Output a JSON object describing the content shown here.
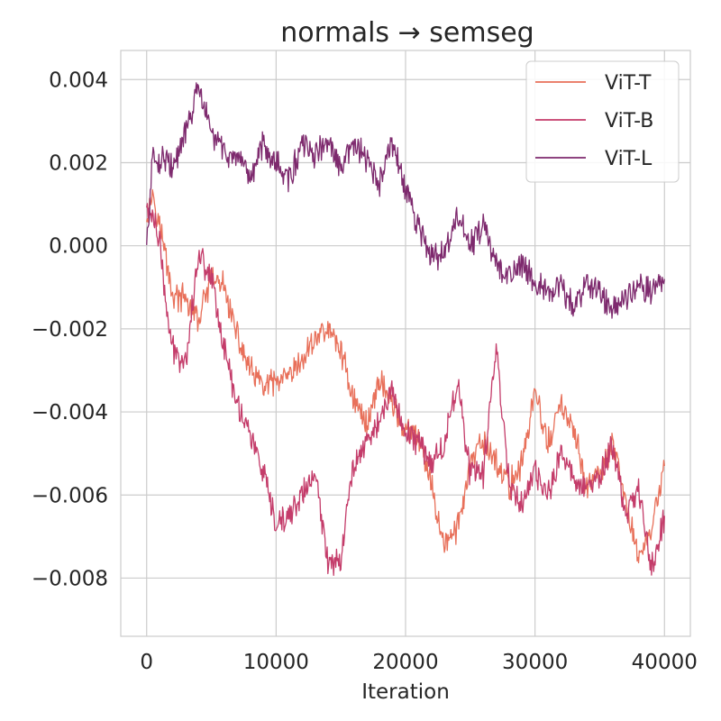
{
  "chart_data": {
    "type": "line",
    "title": "normals → semseg",
    "xlabel": "Iteration",
    "ylabel": "",
    "xlim": [
      -2000,
      42000
    ],
    "ylim": [
      -0.0094,
      0.0047
    ],
    "grid": true,
    "xticks": [
      0,
      10000,
      20000,
      30000,
      40000
    ],
    "xtick_labels": [
      "0",
      "10000",
      "20000",
      "30000",
      "40000"
    ],
    "yticks": [
      0.004,
      0.002,
      0.0,
      -0.002,
      -0.004,
      -0.006,
      -0.008
    ],
    "ytick_labels": [
      "0.004",
      "0.002",
      "0.000",
      "−0.002",
      "−0.004",
      "−0.006",
      "−0.008"
    ],
    "legend_position": "top-right",
    "series": [
      {
        "name": "ViT-T",
        "color": "#e8705a",
        "x": [
          0,
          500,
          1000,
          1500,
          2000,
          3000,
          4000,
          5000,
          6000,
          7000,
          8000,
          9000,
          10000,
          11000,
          12000,
          13000,
          14000,
          15000,
          16000,
          17000,
          18000,
          19000,
          20000,
          21000,
          22000,
          23000,
          24000,
          25000,
          26000,
          27000,
          28000,
          29000,
          30000,
          31000,
          32000,
          33000,
          34000,
          35000,
          36000,
          37000,
          38000,
          39000,
          40000
        ],
        "values": [
          0.0008,
          0.0013,
          0.0005,
          -0.0003,
          -0.0012,
          -0.0013,
          -0.0018,
          -0.0008,
          -0.001,
          -0.0022,
          -0.003,
          -0.0034,
          -0.0033,
          -0.0032,
          -0.0028,
          -0.0022,
          -0.002,
          -0.0025,
          -0.0037,
          -0.0043,
          -0.0032,
          -0.0038,
          -0.0045,
          -0.0046,
          -0.0058,
          -0.0072,
          -0.0068,
          -0.0053,
          -0.0047,
          -0.0052,
          -0.0058,
          -0.0052,
          -0.0035,
          -0.0048,
          -0.0038,
          -0.0045,
          -0.0058,
          -0.0055,
          -0.0048,
          -0.0062,
          -0.0075,
          -0.0068,
          -0.0053
        ]
      },
      {
        "name": "ViT-B",
        "color": "#c43c6a",
        "x": [
          0,
          500,
          1000,
          1500,
          2000,
          3000,
          4000,
          5000,
          6000,
          7000,
          8000,
          9000,
          10000,
          11000,
          12000,
          13000,
          14000,
          15000,
          16000,
          17000,
          18000,
          19000,
          20000,
          21000,
          22000,
          23000,
          24000,
          25000,
          26000,
          27000,
          28000,
          29000,
          30000,
          31000,
          32000,
          33000,
          34000,
          35000,
          36000,
          37000,
          38000,
          39000,
          40000
        ],
        "values": [
          0.0009,
          0.0007,
          0.0001,
          -0.0015,
          -0.0025,
          -0.0028,
          -0.0002,
          -0.0007,
          -0.0025,
          -0.0038,
          -0.0045,
          -0.0055,
          -0.0068,
          -0.0065,
          -0.006,
          -0.0055,
          -0.0076,
          -0.0075,
          -0.0052,
          -0.0047,
          -0.0042,
          -0.0035,
          -0.0045,
          -0.0047,
          -0.0052,
          -0.0048,
          -0.0032,
          -0.0055,
          -0.0055,
          -0.0024,
          -0.0057,
          -0.0062,
          -0.0055,
          -0.006,
          -0.005,
          -0.0056,
          -0.0058,
          -0.0056,
          -0.0048,
          -0.0065,
          -0.0058,
          -0.0078,
          -0.0065
        ]
      },
      {
        "name": "ViT-L",
        "color": "#7e2a6e",
        "x": [
          0,
          500,
          1000,
          1500,
          2000,
          3000,
          4000,
          5000,
          6000,
          7000,
          8000,
          9000,
          10000,
          11000,
          12000,
          13000,
          14000,
          15000,
          16000,
          17000,
          18000,
          19000,
          20000,
          21000,
          22000,
          23000,
          24000,
          25000,
          26000,
          27000,
          28000,
          29000,
          30000,
          31000,
          32000,
          33000,
          34000,
          35000,
          36000,
          37000,
          38000,
          39000,
          40000
        ],
        "values": [
          0.0,
          0.0022,
          0.002,
          0.0022,
          0.0018,
          0.0027,
          0.0038,
          0.0027,
          0.0023,
          0.002,
          0.0016,
          0.0025,
          0.002,
          0.0016,
          0.0024,
          0.0022,
          0.0025,
          0.0018,
          0.0025,
          0.002,
          0.0015,
          0.0025,
          0.0013,
          0.0005,
          -0.0003,
          -0.0002,
          0.0007,
          0.0,
          0.0005,
          -0.0005,
          -0.0007,
          -0.0004,
          -0.0008,
          -0.0012,
          -0.001,
          -0.0015,
          -0.0008,
          -0.0012,
          -0.0015,
          -0.0012,
          -0.0009,
          -0.0011,
          -0.0008
        ]
      }
    ]
  }
}
